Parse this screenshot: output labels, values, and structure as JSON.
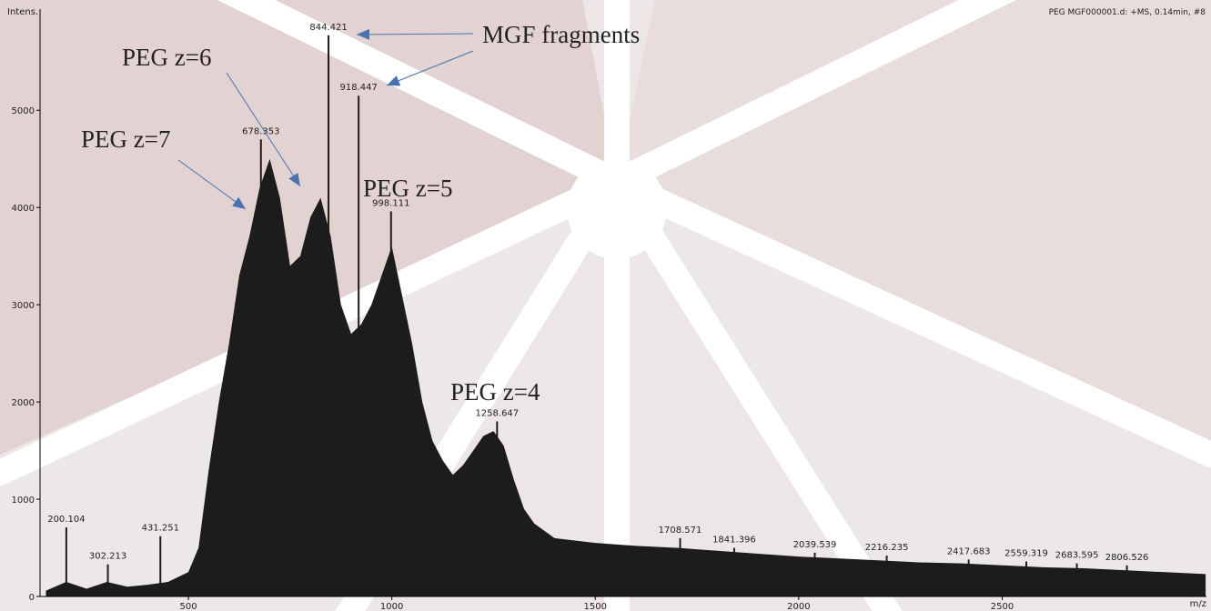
{
  "chart_data": {
    "type": "spectrum",
    "title": "PEG MGF000001.d: +MS, 0.14min, #8",
    "x_label": "m/z",
    "y_label": "Intens.",
    "xlim": [
      135.5,
      3002
    ],
    "xticks": [
      500,
      1000,
      1500,
      2000,
      2500
    ],
    "ylim": [
      0,
      6040
    ],
    "yticks": [
      0,
      1000,
      2000,
      3000,
      4000,
      5000
    ],
    "series": [
      {
        "color": "#1c1c1c",
        "x": [
          150,
          200,
          250,
          300,
          350,
          400,
          450,
          500,
          525,
          550,
          575,
          600,
          625,
          650,
          675,
          700,
          725,
          750,
          775,
          800,
          825,
          850,
          875,
          900,
          925,
          950,
          975,
          1000,
          1025,
          1050,
          1075,
          1100,
          1125,
          1150,
          1175,
          1200,
          1225,
          1250,
          1275,
          1300,
          1325,
          1350,
          1400,
          1500,
          1600,
          1700,
          1800,
          1900,
          2000,
          2100,
          2200,
          2300,
          2400,
          2500,
          2600,
          2700,
          2800,
          2900,
          3000
        ],
        "values": [
          60,
          150,
          80,
          150,
          100,
          120,
          150,
          250,
          500,
          1300,
          2000,
          2600,
          3300,
          3700,
          4200,
          4500,
          4100,
          3400,
          3500,
          3900,
          4100,
          3700,
          3000,
          2700,
          2800,
          3000,
          3300,
          3600,
          3100,
          2600,
          2000,
          1600,
          1400,
          1250,
          1350,
          1500,
          1650,
          1700,
          1550,
          1200,
          900,
          750,
          600,
          550,
          520,
          500,
          470,
          440,
          410,
          390,
          370,
          350,
          340,
          320,
          300,
          290,
          270,
          250,
          230
        ]
      }
    ],
    "peaks": {
      "color": "#1c1c1c",
      "x": [
        200.104,
        302.213,
        431.251,
        678.353,
        844.421,
        918.447,
        998.111,
        1258.647,
        1708.571,
        1841.396,
        2039.539,
        2216.235,
        2417.683,
        2559.319,
        2683.595,
        2806.526
      ],
      "values": [
        710,
        330,
        620,
        4700,
        5770,
        5150,
        3960,
        1800,
        600,
        500,
        450,
        420,
        380,
        360,
        340,
        320
      ]
    },
    "annotations": [
      "MGF fragments",
      "PEG z=6",
      "PEG z=7",
      "PEG z=5",
      "PEG z=4"
    ]
  }
}
